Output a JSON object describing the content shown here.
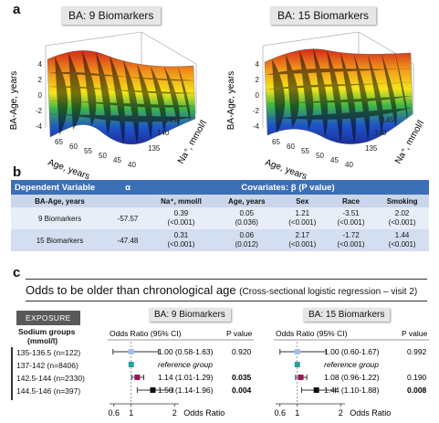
{
  "panel_a": {
    "letter": "a",
    "plots": [
      {
        "title": "BA: 9 Biomarkers",
        "z_label": "BA-Age, years",
        "x_label": "Age, years",
        "y_label": "Na⁺, mmol/l",
        "z_ticks": [
          "4",
          "2",
          "0",
          "-2",
          "-4"
        ],
        "x_ticks": [
          "65",
          "60",
          "55",
          "50",
          "45",
          "40"
        ],
        "y_ticks": [
          "145",
          "140",
          "135"
        ]
      },
      {
        "title": "BA: 15 Biomarkers",
        "z_label": "BA-Age, years",
        "x_label": "Age, years",
        "y_label": "Na⁺, mmol/l",
        "z_ticks": [
          "4",
          "2",
          "0",
          "-2",
          "-4"
        ],
        "x_ticks": [
          "65",
          "60",
          "55",
          "50",
          "45",
          "40"
        ],
        "y_ticks": [
          "145",
          "140",
          "135"
        ]
      }
    ]
  },
  "panel_b": {
    "letter": "b",
    "header": {
      "dependent": "Dependent Variable",
      "alpha": "α",
      "covariates": "Covariates: β (P value)"
    },
    "subheader": [
      "BA-Age, years",
      "",
      "Na⁺, mmol/l",
      "Age, years",
      "Sex",
      "Race",
      "Smoking"
    ],
    "rows": [
      {
        "label": "9 Biomarkers",
        "alpha": "-57.57",
        "cells": [
          [
            "0.39",
            "(<0.001)"
          ],
          [
            "0.05",
            "(0.036)"
          ],
          [
            "1.21",
            "(<0.001)"
          ],
          [
            "-3.51",
            "(<0.001)"
          ],
          [
            "2.02",
            "(<0.001)"
          ]
        ]
      },
      {
        "label": "15 Biomarkers",
        "alpha": "-47.48",
        "cells": [
          [
            "0.31",
            "(<0.001)"
          ],
          [
            "0.06",
            "(0.012)"
          ],
          [
            "2.17",
            "(<0.001)"
          ],
          [
            "-1.72",
            "(<0.001)"
          ],
          [
            "1.44",
            "(<0.001)"
          ]
        ]
      }
    ]
  },
  "panel_c": {
    "letter": "c",
    "heading_main": "Odds to be older than chronological age",
    "heading_sub": "(Cross-sectional logistic regression – visit 2)",
    "exposure": "EXPOSURE",
    "group_title_1": "Sodium groups",
    "group_title_2": "(mmol/l)",
    "groups": [
      "135-136.5 (n=122)",
      "137-142 (n=8406)",
      "142.5-144 (n=2330)",
      "144.5-146 (n=397)"
    ],
    "forests": [
      {
        "title": "BA: 9 Biomarkers",
        "col_or": "Odds Ratio (95% CI)",
        "col_p": "P value",
        "axis_label": "Odds Ratio",
        "ticks": [
          "0.6",
          "1",
          "2"
        ],
        "rows": [
          {
            "text": "1.00 (0.58-1.63)",
            "p": "0.920",
            "or": 1.0,
            "lo": 0.58,
            "hi": 1.63,
            "bold": false,
            "color": "#9ec1e8"
          },
          {
            "text": "reference group",
            "p": "",
            "or": 1.0,
            "lo": 1.0,
            "hi": 1.0,
            "bold": false,
            "color": "#2aa198",
            "ref": true
          },
          {
            "text": "1.14 (1.01-1.29)",
            "p": "0.035",
            "or": 1.14,
            "lo": 1.01,
            "hi": 1.29,
            "bold": true,
            "color": "#9c1458"
          },
          {
            "text": "1.50 (1.14-1.96)",
            "p": "0.004",
            "or": 1.5,
            "lo": 1.14,
            "hi": 1.96,
            "bold": true,
            "color": "#111111"
          }
        ]
      },
      {
        "title": "BA: 15 Biomarkers",
        "col_or": "Odds Ratio (95% CI)",
        "col_p": "P value",
        "axis_label": "Odds Ratio",
        "ticks": [
          "0.6",
          "1",
          "2"
        ],
        "rows": [
          {
            "text": "1.00 (0.60-1.67)",
            "p": "0.992",
            "or": 1.0,
            "lo": 0.6,
            "hi": 1.67,
            "bold": false,
            "color": "#9ec1e8"
          },
          {
            "text": "reference group",
            "p": "",
            "or": 1.0,
            "lo": 1.0,
            "hi": 1.0,
            "bold": false,
            "color": "#2aa198",
            "ref": true
          },
          {
            "text": "1.08 (0.96-1.22)",
            "p": "0.190",
            "or": 1.08,
            "lo": 0.96,
            "hi": 1.22,
            "bold": false,
            "color": "#9c1458"
          },
          {
            "text": "1.44 (1.10-1.88)",
            "p": "0.008",
            "or": 1.44,
            "lo": 1.1,
            "hi": 1.88,
            "bold": true,
            "color": "#111111"
          }
        ]
      }
    ]
  },
  "chart_data": [
    {
      "type": "scatter",
      "title": "BA: 9 Biomarkers",
      "xlabel": "Odds Ratio",
      "categories": [
        "135-136.5 (n=122)",
        "137-142 (n=8406)",
        "142.5-144 (n=2330)",
        "144.5-146 (n=397)"
      ],
      "values": [
        1.0,
        1.0,
        1.14,
        1.5
      ],
      "ci_low": [
        0.58,
        null,
        1.01,
        1.14
      ],
      "ci_high": [
        1.63,
        null,
        1.29,
        1.96
      ],
      "p_values": [
        "0.920",
        "",
        "0.035",
        "0.004"
      ]
    },
    {
      "type": "scatter",
      "title": "BA: 15 Biomarkers",
      "xlabel": "Odds Ratio",
      "categories": [
        "135-136.5 (n=122)",
        "137-142 (n=8406)",
        "142.5-144 (n=2330)",
        "144.5-146 (n=397)"
      ],
      "values": [
        1.0,
        1.0,
        1.08,
        1.44
      ],
      "ci_low": [
        0.6,
        null,
        0.96,
        1.1
      ],
      "ci_high": [
        1.67,
        null,
        1.22,
        1.88
      ],
      "p_values": [
        "0.992",
        "",
        "0.190",
        "0.008"
      ]
    }
  ]
}
